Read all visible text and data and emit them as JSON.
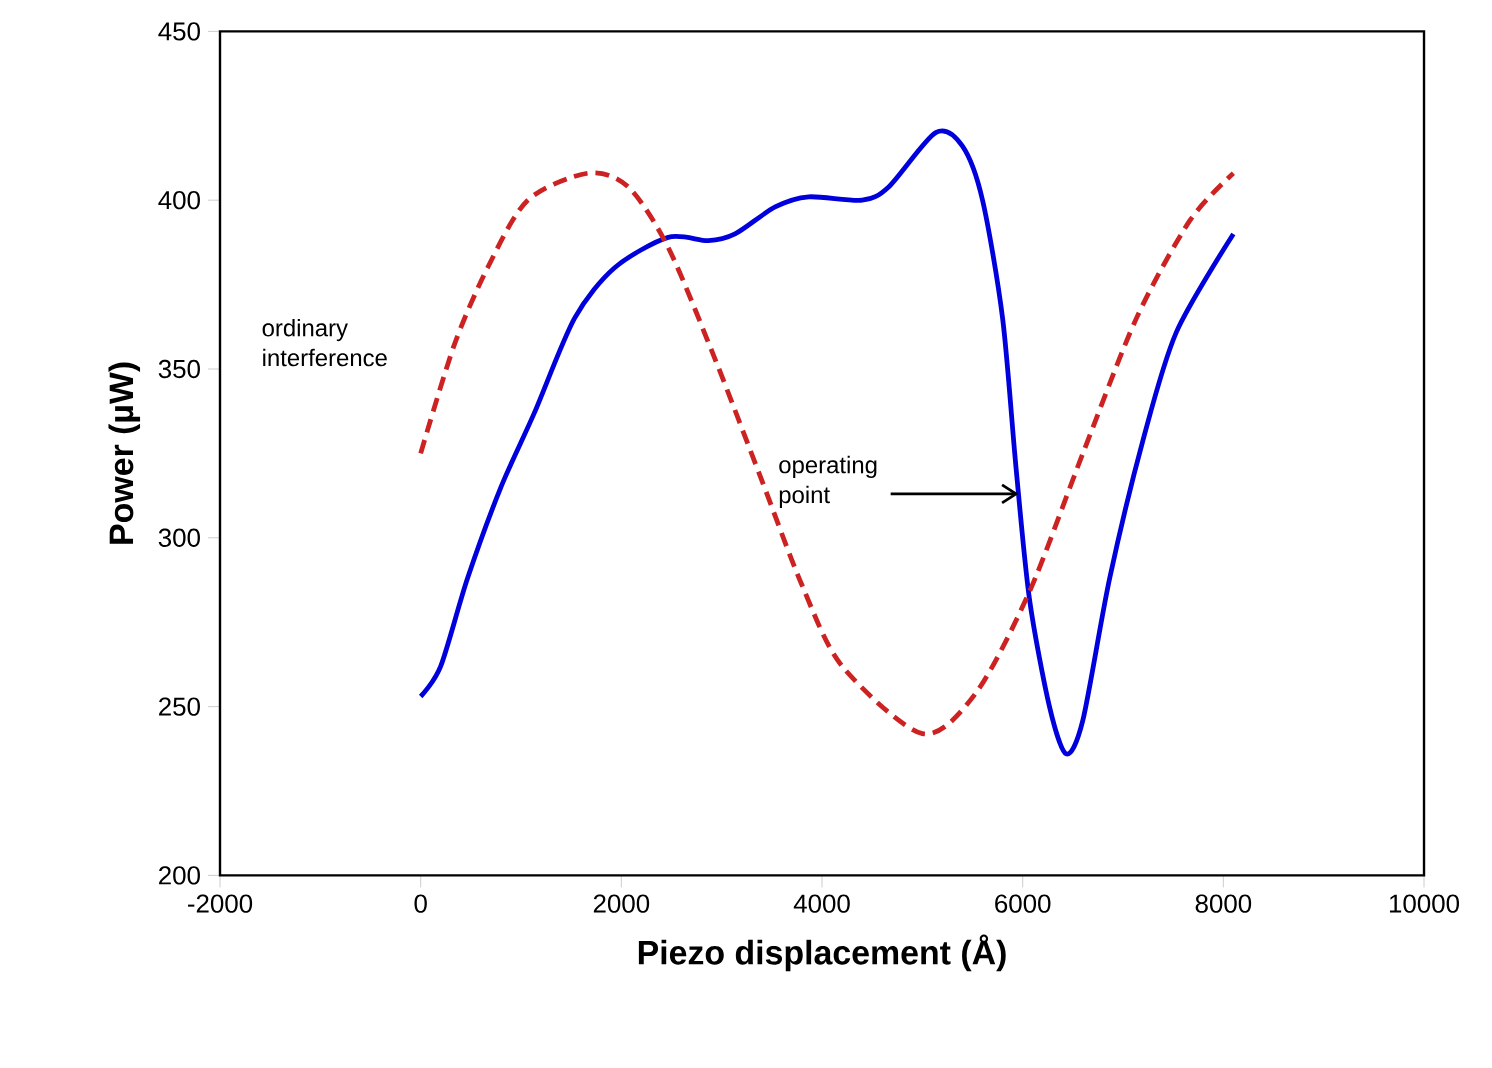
{
  "chart_data": {
    "type": "line",
    "xlabel": "Piezo displacement (Å)",
    "ylabel": "Power (µW)",
    "xlim": [
      -2000,
      10000
    ],
    "xticks": [
      -2000,
      0,
      2000,
      4000,
      6000,
      8000,
      10000
    ],
    "ylim": [
      200,
      450
    ],
    "yticks": [
      200,
      250,
      300,
      350,
      400,
      450
    ],
    "grid": false,
    "legend": false,
    "marker": "none",
    "series": [
      {
        "color": "#0000dd",
        "line_style": "solid",
        "x": [
          0,
          200,
          467,
          800,
          1133,
          1533,
          1933,
          2467,
          2867,
          3133,
          3533,
          3867,
          4400,
          4667,
          5133,
          5400,
          5600,
          5800,
          5933,
          6067,
          6267,
          6433,
          6600,
          6867,
          7200,
          7533,
          8100
        ],
        "values": [
          253,
          262,
          288,
          315,
          337,
          365,
          380,
          389,
          388,
          390,
          398,
          401,
          400,
          404,
          420,
          416,
          400,
          365,
          321,
          282,
          250,
          236,
          246,
          288,
          329,
          361,
          390
        ]
      },
      {
        "name": "ordinary interference",
        "color": "#cc2222",
        "line_style": "dashed",
        "x": [
          0,
          333,
          667,
          1067,
          1667,
          2067,
          2467,
          2933,
          3400,
          3800,
          4200,
          5000,
          5533,
          6067,
          6600,
          7133,
          7667,
          8100
        ],
        "values": [
          325,
          357,
          380,
          400,
          408,
          404,
          386,
          353,
          317,
          286,
          262,
          242,
          254,
          284,
          325,
          365,
          394,
          408
        ]
      }
    ],
    "annotations": [
      {
        "text": "operating point",
        "x": 5960,
        "y": 313
      }
    ]
  }
}
